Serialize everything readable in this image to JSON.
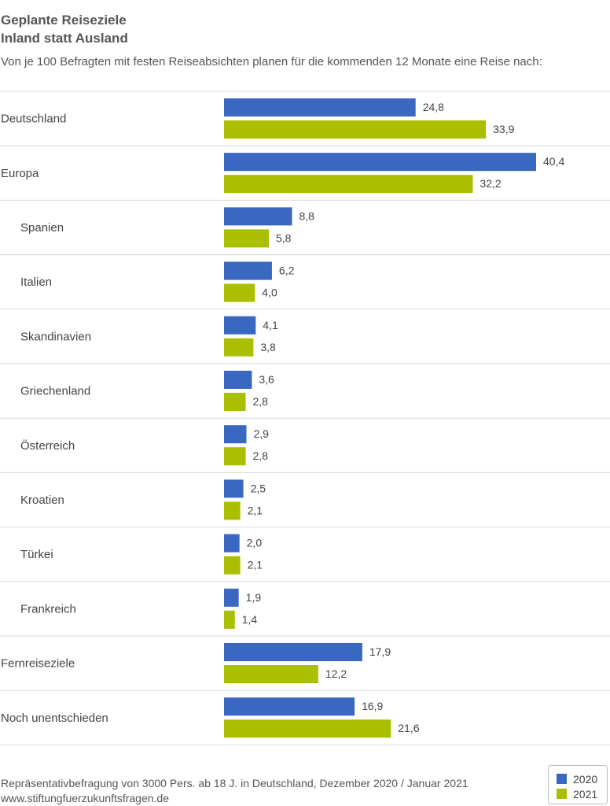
{
  "title_line1": "Geplante Reiseziele",
  "title_line2": "Inland statt Ausland",
  "subtitle": "Von je 100 Befragten mit festen Reiseabsichten planen für die kommenden 12 Monate eine Reise nach:",
  "footer_line1": "Repräsentativbefragung von 3000 Pers. ab 18 J. in Deutschland, Dezember 2020 / Januar 2021",
  "footer_line2": "www.stiftungfuerzukunftsfragen.de",
  "colors": {
    "2020": "#3a67c0",
    "2021": "#a9bf00",
    "separator": "#d9d9d9",
    "text": "#444444"
  },
  "chart_data": {
    "type": "bar",
    "orientation": "horizontal",
    "categories": [
      "Deutschland",
      "Europa",
      "Spanien",
      "Italien",
      "Skandinavien",
      "Griechenland",
      "Österreich",
      "Kroatien",
      "Türkei",
      "Frankreich",
      "Fernreiseziele",
      "Noch unentschieden"
    ],
    "indented": [
      false,
      false,
      true,
      true,
      true,
      true,
      true,
      true,
      true,
      true,
      false,
      false
    ],
    "series": [
      {
        "name": "2020",
        "values": [
          24.8,
          40.4,
          8.8,
          6.2,
          4.1,
          3.6,
          2.9,
          2.5,
          2.0,
          1.9,
          17.9,
          16.9
        ],
        "labels": [
          "24,8",
          "40,4",
          "8,8",
          "6,2",
          "4,1",
          "3,6",
          "2,9",
          "2,5",
          "2,0",
          "1,9",
          "17,9",
          "16,9"
        ]
      },
      {
        "name": "2021",
        "values": [
          33.9,
          32.2,
          5.8,
          4.0,
          3.8,
          2.8,
          2.8,
          2.1,
          2.1,
          1.4,
          12.2,
          21.6
        ],
        "labels": [
          "33,9",
          "32,2",
          "5,8",
          "4,0",
          "3,8",
          "2,8",
          "2,8",
          "2,1",
          "2,1",
          "1,4",
          "12,2",
          "21,6"
        ]
      }
    ],
    "xlim": [
      0,
      40.4
    ],
    "grid": false,
    "legend": "bottom-right"
  }
}
